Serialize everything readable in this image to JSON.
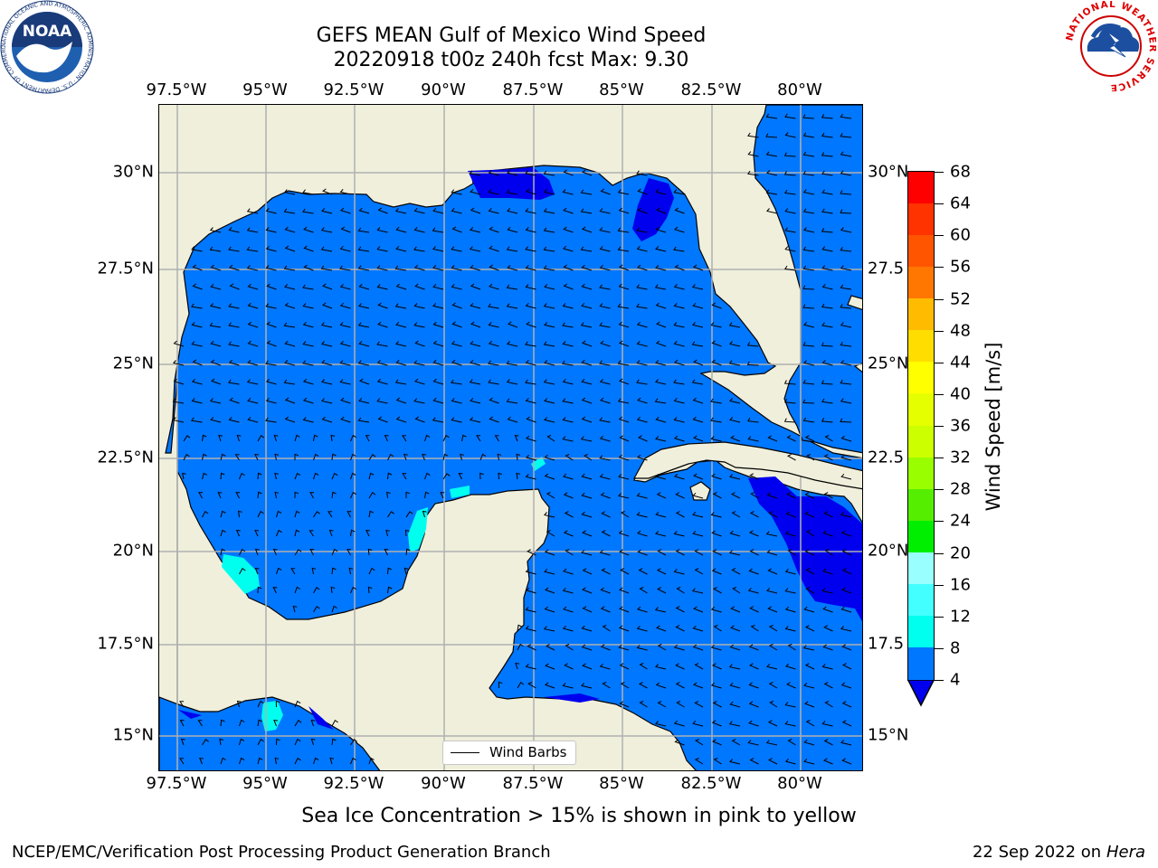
{
  "title_line1": "GEFS MEAN Gulf of Mexico Wind Speed",
  "title_line2": "20220918 t00z 240h fcst   Max: 9.30",
  "lon_labels": [
    "97.5°W",
    "95°W",
    "92.5°W",
    "90°W",
    "87.5°W",
    "85°W",
    "82.5°W",
    "80°W"
  ],
  "lat_labels": [
    "30°N",
    "27.5°N",
    "25°N",
    "22.5°N",
    "20°N",
    "17.5°N",
    "15°N"
  ],
  "lat_labels_right": [
    "30°N",
    "27.5",
    "25°N",
    "22.5",
    "20°N",
    "17.5",
    "15°N"
  ],
  "legend": {
    "wind_barbs": "Wind Barbs"
  },
  "colorbar": {
    "label": "Wind Speed [m/s]",
    "ticks": [
      "68",
      "64",
      "60",
      "56",
      "52",
      "48",
      "44",
      "40",
      "36",
      "32",
      "28",
      "24",
      "20",
      "16",
      "12",
      "8",
      "4"
    ],
    "colors": [
      "#ff0000",
      "#ff3300",
      "#ff5500",
      "#ff7700",
      "#ff9900",
      "#ffbb00",
      "#ffdd00",
      "#ffff00",
      "#e6ff00",
      "#ccff00",
      "#99ff00",
      "#55ee00",
      "#00ee00",
      "#55ff88",
      "#99ffff",
      "#44ffff",
      "#00ffee",
      "#0077ff",
      "#0000ee"
    ],
    "extend_color": "#0000ee"
  },
  "colors": {
    "land": "#efefdc",
    "ocean_4_8": "#0077ff",
    "ocean_below_4": "#0000ee",
    "ocean_8_12": "#00ffee",
    "grid": "#b0b0b0"
  },
  "caption": "Sea Ice Concentration > 15% is shown in pink to yellow",
  "footer_left": "NCEP/EMC/Verification Post Processing Product Generation Branch",
  "footer_right_date": "22 Sep 2022 on",
  "footer_right_machine": "Hera",
  "logos": {
    "noaa": {
      "text": "NOAA",
      "ring": "NATIONAL OCEANIC AND ATMOSPHERIC ADMINISTRATION · U.S. DEPARTMENT OF COMMERCE"
    },
    "nws": {
      "ring": "NATIONAL WEATHER SERVICE"
    }
  }
}
